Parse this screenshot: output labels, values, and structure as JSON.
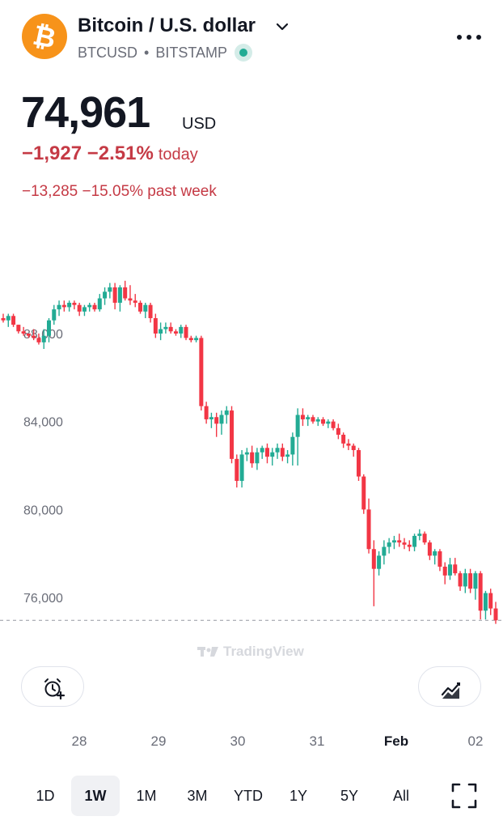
{
  "header": {
    "title": "Bitcoin / U.S. dollar",
    "symbol": "BTCUSD",
    "separator": "•",
    "exchange": "BITSTAMP",
    "logo_icon": "bitcoin-icon",
    "dropdown_icon": "chevron-down-icon",
    "menu_icon": "more-horizontal-icon",
    "logo_color": "#f7931a",
    "live_color": "#22ab94"
  },
  "quote": {
    "price": "74,961",
    "currency": "USD",
    "change_today": "−1,927 −2.51%",
    "today_label": "today",
    "change_week": "−13,285 −15.05% past week",
    "down_color": "#c53a45"
  },
  "chart_data": {
    "type": "candlestick",
    "y_ticks": [
      "88,000",
      "84,000",
      "80,000",
      "76,000"
    ],
    "x_ticks": [
      "28",
      "29",
      "30",
      "31",
      "Feb",
      "02"
    ],
    "last_price": 74961,
    "up_color": "#22ab94",
    "down_color": "#f23645",
    "watermark": "TradingView",
    "candles": [
      [
        88700,
        88900,
        88500,
        88600
      ],
      [
        88600,
        88900,
        88300,
        88800
      ],
      [
        88800,
        88900,
        88300,
        88400
      ],
      [
        88400,
        88400,
        88000,
        88100
      ],
      [
        88100,
        88300,
        87900,
        88000
      ],
      [
        88000,
        88000,
        87800,
        87900
      ],
      [
        87900,
        88200,
        87700,
        87800
      ],
      [
        87800,
        88000,
        87500,
        87600
      ],
      [
        87600,
        88200,
        87300,
        87900
      ],
      [
        87900,
        88700,
        87600,
        88600
      ],
      [
        88600,
        89300,
        88400,
        89100
      ],
      [
        89100,
        89500,
        88800,
        89300
      ],
      [
        89300,
        89500,
        89000,
        89200
      ],
      [
        89200,
        89500,
        89000,
        89400
      ],
      [
        89400,
        89500,
        89100,
        89300
      ],
      [
        89300,
        89400,
        88800,
        89000
      ],
      [
        89000,
        89300,
        88800,
        89200
      ],
      [
        89200,
        89400,
        89000,
        89300
      ],
      [
        89300,
        89400,
        89000,
        89100
      ],
      [
        89100,
        89800,
        89000,
        89600
      ],
      [
        89600,
        90100,
        89300,
        89900
      ],
      [
        89900,
        90300,
        89600,
        90100
      ],
      [
        90100,
        90300,
        89100,
        89400
      ],
      [
        89400,
        90200,
        89000,
        90100
      ],
      [
        90100,
        90400,
        89500,
        89600
      ],
      [
        89600,
        90200,
        89300,
        89500
      ],
      [
        89500,
        89800,
        89200,
        89400
      ],
      [
        89400,
        89500,
        88900,
        89000
      ],
      [
        89000,
        89400,
        88700,
        89300
      ],
      [
        89300,
        89400,
        88500,
        88700
      ],
      [
        88700,
        88900,
        87800,
        88000
      ],
      [
        88000,
        88500,
        87700,
        88200
      ],
      [
        88200,
        88500,
        88000,
        88300
      ],
      [
        88300,
        88500,
        88000,
        88100
      ],
      [
        88100,
        88200,
        87900,
        88000
      ],
      [
        88000,
        88400,
        87800,
        88300
      ],
      [
        88300,
        88400,
        87700,
        87800
      ],
      [
        87800,
        87900,
        87600,
        87700
      ],
      [
        87700,
        87900,
        87600,
        87800
      ],
      [
        87800,
        87900,
        84500,
        84700
      ],
      [
        84700,
        84900,
        83900,
        84100
      ],
      [
        84100,
        84400,
        83700,
        84200
      ],
      [
        84200,
        84400,
        83300,
        83900
      ],
      [
        83900,
        84500,
        83400,
        84300
      ],
      [
        84300,
        84700,
        83900,
        84500
      ],
      [
        84500,
        84700,
        82100,
        82300
      ],
      [
        82300,
        82500,
        81000,
        81300
      ],
      [
        81300,
        82700,
        81000,
        82500
      ],
      [
        82500,
        82800,
        82200,
        82600
      ],
      [
        82600,
        82900,
        81900,
        82100
      ],
      [
        82100,
        82800,
        81800,
        82600
      ],
      [
        82600,
        82900,
        82300,
        82800
      ],
      [
        82800,
        83000,
        82100,
        82400
      ],
      [
        82400,
        82800,
        82000,
        82600
      ],
      [
        82600,
        83000,
        82300,
        82800
      ],
      [
        82800,
        83000,
        82200,
        82400
      ],
      [
        82400,
        82700,
        82100,
        82500
      ],
      [
        82500,
        83500,
        82000,
        83300
      ],
      [
        83300,
        84600,
        82000,
        84300
      ],
      [
        84300,
        84600,
        83800,
        84100
      ],
      [
        84100,
        84300,
        83800,
        84200
      ],
      [
        84200,
        84300,
        83900,
        84000
      ],
      [
        84000,
        84200,
        83800,
        84100
      ],
      [
        84100,
        84200,
        83800,
        83900
      ],
      [
        83900,
        84100,
        83700,
        84000
      ],
      [
        84000,
        84100,
        83600,
        83700
      ],
      [
        83700,
        83900,
        83200,
        83400
      ],
      [
        83400,
        83500,
        82800,
        83000
      ],
      [
        83000,
        83200,
        82700,
        82900
      ],
      [
        82900,
        83000,
        82400,
        82700
      ],
      [
        82700,
        82800,
        81300,
        81500
      ],
      [
        81500,
        81600,
        79800,
        80000
      ],
      [
        80000,
        80500,
        78000,
        78200
      ],
      [
        78200,
        78600,
        75600,
        77300
      ],
      [
        77300,
        78100,
        77000,
        77900
      ],
      [
        77900,
        78600,
        77500,
        78300
      ],
      [
        78300,
        78700,
        78000,
        78500
      ],
      [
        78500,
        78800,
        78200,
        78600
      ],
      [
        78600,
        78900,
        78300,
        78500
      ],
      [
        78500,
        78700,
        78200,
        78400
      ],
      [
        78400,
        78600,
        78100,
        78300
      ],
      [
        78300,
        78900,
        78100,
        78800
      ],
      [
        78800,
        79100,
        78600,
        78900
      ],
      [
        78900,
        79000,
        78400,
        78500
      ],
      [
        78500,
        78600,
        77700,
        77900
      ],
      [
        77900,
        78200,
        77500,
        78100
      ],
      [
        78100,
        78200,
        77200,
        77400
      ],
      [
        77400,
        77600,
        76600,
        77000
      ],
      [
        77000,
        77800,
        76800,
        77500
      ],
      [
        77500,
        77800,
        77000,
        77100
      ],
      [
        77100,
        77200,
        76300,
        76500
      ],
      [
        76500,
        77300,
        76200,
        77100
      ],
      [
        77100,
        77300,
        76200,
        76400
      ],
      [
        76400,
        77200,
        75900,
        77100
      ],
      [
        77100,
        77200,
        75000,
        75400
      ],
      [
        75400,
        76300,
        75000,
        76200
      ],
      [
        76200,
        76400,
        75200,
        75500
      ],
      [
        75500,
        75800,
        74800,
        74961
      ]
    ]
  },
  "buttons": {
    "alert_icon": "alarm-plus-icon",
    "indicator_icon": "chart-indicator-icon"
  },
  "timeframes": [
    "1D",
    "1W",
    "1M",
    "3M",
    "YTD",
    "1Y",
    "5Y",
    "All"
  ],
  "active_timeframe": "1W",
  "fullscreen_icon": "fullscreen-icon"
}
